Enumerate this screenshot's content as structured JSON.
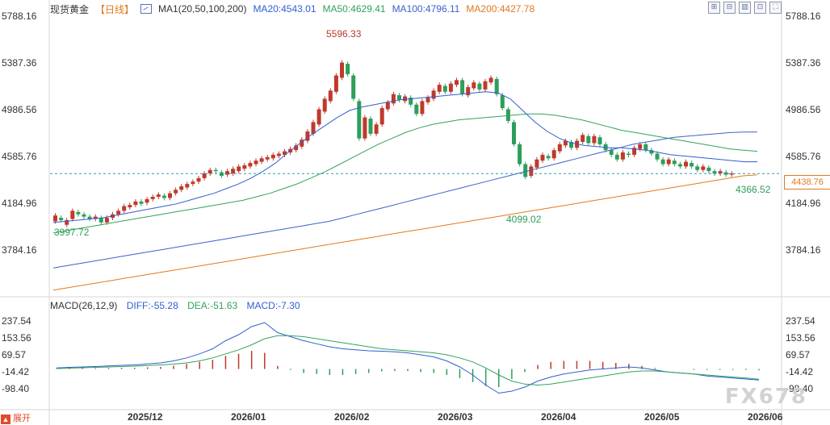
{
  "header": {
    "instrument": "现货黄金",
    "period": "【日线】",
    "indicator": "MA1(20,50,100,200)",
    "ma20": "MA20:4543.01",
    "ma50": "MA50:4629.41",
    "ma100": "MA100:4796.11",
    "ma200": "MA200:4427.78"
  },
  "macd_header": {
    "title": "MACD(26,12,9)",
    "diff": "DIFF:-55.28",
    "dea": "DEA:-51.63",
    "macd": "MACD:-7.30"
  },
  "colors": {
    "up": "#c0392b",
    "down": "#2e9e5b",
    "ma20": "#2f5fd0",
    "ma50": "#31a35b",
    "ma100": "#3a63c9",
    "ma200": "#e07a1f",
    "current": "#2a9bb3"
  },
  "current_price": "4438.76",
  "watermark": "FX678",
  "expand_label": "展开",
  "tools": [
    "zoom-in-icon",
    "zoom-out-icon",
    "bar-chart-icon",
    "settings-icon",
    "fullscreen-icon"
  ],
  "price_axis": {
    "ticks": [
      "5788.16",
      "5387.36",
      "4986.56",
      "4585.76",
      "4184.96",
      "3784.16"
    ],
    "left_ticks": [
      "5788.16",
      "5387.36",
      "4986.56",
      "4585.76",
      "4184.96",
      "3784.16"
    ]
  },
  "macd_axis": {
    "ticks": [
      "237.54",
      "153.56",
      "69.57",
      "-14.42",
      "-98.40"
    ]
  },
  "date_axis": [
    "2025/12",
    "2026/01",
    "2026/02",
    "2026/03",
    "2026/04",
    "2026/05",
    "2026/06"
  ],
  "annotations": {
    "high": "5596.33",
    "low1": "3997.72",
    "low2": "4099.02",
    "low3": "4366.52"
  },
  "chart_data": {
    "type": "candlestick",
    "y_axis": [
      3784.16,
      5788.16
    ],
    "candles": [
      [
        4030,
        4080
      ],
      [
        4060,
        4040
      ],
      [
        4000,
        4040
      ],
      [
        4050,
        4120
      ],
      [
        4110,
        4090
      ],
      [
        4090,
        4070
      ],
      [
        4070,
        4050
      ],
      [
        4050,
        4070
      ],
      [
        4060,
        4020
      ],
      [
        4020,
        4060
      ],
      [
        4060,
        4090
      ],
      [
        4090,
        4120
      ],
      [
        4120,
        4160
      ],
      [
        4150,
        4170
      ],
      [
        4170,
        4200
      ],
      [
        4200,
        4180
      ],
      [
        4190,
        4220
      ],
      [
        4220,
        4240
      ],
      [
        4240,
        4260
      ],
      [
        4250,
        4230
      ],
      [
        4230,
        4270
      ],
      [
        4270,
        4300
      ],
      [
        4300,
        4330
      ],
      [
        4320,
        4350
      ],
      [
        4350,
        4370
      ],
      [
        4370,
        4400
      ],
      [
        4400,
        4440
      ],
      [
        4440,
        4470
      ],
      [
        4470,
        4460
      ],
      [
        4450,
        4420
      ],
      [
        4430,
        4460
      ],
      [
        4440,
        4480
      ],
      [
        4460,
        4500
      ],
      [
        4480,
        4510
      ],
      [
        4500,
        4530
      ],
      [
        4520,
        4550
      ],
      [
        4540,
        4570
      ],
      [
        4560,
        4580
      ],
      [
        4570,
        4600
      ],
      [
        4590,
        4610
      ],
      [
        4600,
        4630
      ],
      [
        4620,
        4650
      ],
      [
        4640,
        4680
      ],
      [
        4670,
        4730
      ],
      [
        4720,
        4800
      ],
      [
        4780,
        4880
      ],
      [
        4860,
        4990
      ],
      [
        4970,
        5080
      ],
      [
        5060,
        5150
      ],
      [
        5140,
        5280
      ],
      [
        5260,
        5390
      ],
      [
        5380,
        5290
      ],
      [
        5280,
        5080
      ],
      [
        5060,
        4740
      ],
      [
        4740,
        4920
      ],
      [
        4910,
        4780
      ],
      [
        4780,
        4860
      ],
      [
        4860,
        5000
      ],
      [
        4990,
        5050
      ],
      [
        5040,
        5120
      ],
      [
        5110,
        5070
      ],
      [
        5060,
        5100
      ],
      [
        5090,
        5030
      ],
      [
        5030,
        4950
      ],
      [
        4950,
        5060
      ],
      [
        5050,
        5090
      ],
      [
        5080,
        5150
      ],
      [
        5140,
        5200
      ],
      [
        5190,
        5140
      ],
      [
        5140,
        5210
      ],
      [
        5200,
        5240
      ],
      [
        5240,
        5120
      ],
      [
        5110,
        5180
      ],
      [
        5170,
        5220
      ],
      [
        5210,
        5160
      ],
      [
        5160,
        5230
      ],
      [
        5220,
        5260
      ],
      [
        5250,
        5120
      ],
      [
        5110,
        5000
      ],
      [
        4990,
        4890
      ],
      [
        4880,
        4690
      ],
      [
        4690,
        4520
      ],
      [
        4520,
        4410
      ],
      [
        4420,
        4500
      ],
      [
        4490,
        4560
      ],
      [
        4550,
        4600
      ],
      [
        4590,
        4570
      ],
      [
        4570,
        4640
      ],
      [
        4630,
        4690
      ],
      [
        4680,
        4720
      ],
      [
        4710,
        4660
      ],
      [
        4660,
        4720
      ],
      [
        4710,
        4770
      ],
      [
        4760,
        4700
      ],
      [
        4700,
        4760
      ],
      [
        4750,
        4690
      ],
      [
        4690,
        4640
      ],
      [
        4640,
        4600
      ],
      [
        4600,
        4560
      ],
      [
        4560,
        4620
      ],
      [
        4610,
        4600
      ],
      [
        4600,
        4660
      ],
      [
        4650,
        4690
      ],
      [
        4690,
        4640
      ],
      [
        4640,
        4610
      ],
      [
        4610,
        4560
      ],
      [
        4560,
        4520
      ],
      [
        4520,
        4560
      ],
      [
        4550,
        4520
      ],
      [
        4520,
        4500
      ],
      [
        4500,
        4540
      ],
      [
        4530,
        4500
      ],
      [
        4500,
        4470
      ],
      [
        4470,
        4500
      ],
      [
        4490,
        4460
      ],
      [
        4460,
        4440
      ],
      [
        4440,
        4460
      ],
      [
        4450,
        4430
      ],
      [
        4430,
        4440
      ]
    ],
    "ma20": [
      4020,
      4030,
      4040,
      4050,
      4060,
      4080,
      4100,
      4120,
      4140,
      4160,
      4180,
      4210,
      4240,
      4270,
      4310,
      4350,
      4400,
      4460,
      4530,
      4620,
      4700,
      4780,
      4850,
      4920,
      4980,
      5010,
      5030,
      5050,
      5070,
      5080,
      5090,
      5100,
      5110,
      5120,
      5130,
      5140,
      5130,
      5080,
      4980,
      4880,
      4800,
      4740,
      4700,
      4680,
      4670,
      4660,
      4660,
      4650,
      4640,
      4620,
      4600,
      4590,
      4580,
      4570,
      4560,
      4550,
      4540,
      4540
    ],
    "ma50": [
      3930,
      3950,
      3970,
      3990,
      4010,
      4030,
      4050,
      4070,
      4090,
      4110,
      4130,
      4150,
      4170,
      4190,
      4210,
      4240,
      4270,
      4310,
      4350,
      4400,
      4450,
      4510,
      4570,
      4630,
      4690,
      4740,
      4790,
      4830,
      4860,
      4880,
      4900,
      4910,
      4920,
      4930,
      4940,
      4950,
      4950,
      4940,
      4920,
      4900,
      4870,
      4840,
      4810,
      4790,
      4770,
      4750,
      4730,
      4710,
      4690,
      4670,
      4650,
      4640,
      4630
    ],
    "ma100": [
      3630,
      3650,
      3670,
      3690,
      3710,
      3730,
      3750,
      3770,
      3790,
      3810,
      3830,
      3850,
      3870,
      3890,
      3910,
      3930,
      3950,
      3970,
      3990,
      4010,
      4030,
      4060,
      4090,
      4120,
      4150,
      4180,
      4210,
      4240,
      4270,
      4300,
      4330,
      4360,
      4390,
      4420,
      4450,
      4480,
      4510,
      4540,
      4570,
      4600,
      4630,
      4660,
      4690,
      4710,
      4730,
      4750,
      4760,
      4770,
      4780,
      4790,
      4795,
      4796
    ],
    "ma200": [
      3440,
      3460,
      3480,
      3500,
      3520,
      3540,
      3560,
      3580,
      3600,
      3620,
      3640,
      3660,
      3680,
      3700,
      3720,
      3740,
      3760,
      3780,
      3800,
      3820,
      3840,
      3860,
      3880,
      3900,
      3920,
      3940,
      3960,
      3980,
      4000,
      4020,
      4040,
      4060,
      4080,
      4100,
      4120,
      4140,
      4160,
      4180,
      4200,
      4220,
      4240,
      4260,
      4280,
      4300,
      4320,
      4340,
      4360,
      4380,
      4400,
      4420,
      4428
    ],
    "macd": {
      "y_axis": [
        -130,
        270
      ],
      "diff": [
        5,
        8,
        10,
        12,
        15,
        18,
        20,
        25,
        30,
        40,
        55,
        75,
        100,
        140,
        170,
        210,
        230,
        180,
        160,
        140,
        125,
        110,
        100,
        95,
        90,
        88,
        85,
        80,
        70,
        60,
        40,
        10,
        -30,
        -80,
        -120,
        -110,
        -90,
        -60,
        -40,
        -25,
        -15,
        -5,
        0,
        5,
        10,
        5,
        -5,
        -15,
        -20,
        -25,
        -35,
        -40,
        -45,
        -50,
        -55
      ],
      "dea": [
        2,
        4,
        6,
        8,
        10,
        12,
        14,
        17,
        20,
        24,
        30,
        40,
        55,
        75,
        95,
        120,
        150,
        165,
        165,
        160,
        150,
        140,
        130,
        120,
        110,
        100,
        95,
        90,
        85,
        80,
        70,
        55,
        35,
        5,
        -30,
        -60,
        -75,
        -80,
        -75,
        -65,
        -55,
        -45,
        -35,
        -25,
        -15,
        -10,
        -10,
        -15,
        -20,
        -25,
        -30,
        -35,
        -40,
        -45,
        -51
      ],
      "hist": [
        3,
        4,
        4,
        4,
        5,
        6,
        6,
        8,
        10,
        16,
        25,
        35,
        45,
        65,
        75,
        90,
        80,
        15,
        -5,
        -20,
        -25,
        -30,
        -30,
        -25,
        -20,
        -12,
        -10,
        -10,
        -15,
        -20,
        -30,
        -45,
        -65,
        -85,
        -90,
        -50,
        -15,
        20,
        35,
        40,
        40,
        40,
        35,
        30,
        25,
        15,
        5,
        0,
        0,
        -5,
        -5,
        -5,
        -5,
        -5,
        -7
      ]
    }
  }
}
